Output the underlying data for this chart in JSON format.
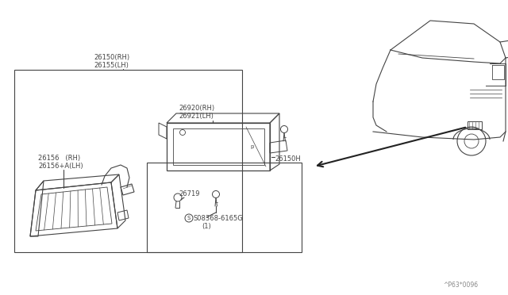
{
  "bg_color": "#ffffff",
  "line_color": "#444444",
  "text_color": "#444444",
  "fig_width": 6.4,
  "fig_height": 3.72,
  "watermark": "^P63*0096",
  "labels": {
    "main_top1": "26150(RH)",
    "main_top2": "26155(LH)",
    "bracket_top1": "26920(RH)",
    "bracket_top2": "26921(LH)",
    "lamp_label1": "26156   (RH)",
    "lamp_label2": "26156+A(LH)",
    "clip": "26719",
    "screw_label": "S08368-6165G",
    "screw_sub": "(1)",
    "housing_label": "26150H"
  }
}
